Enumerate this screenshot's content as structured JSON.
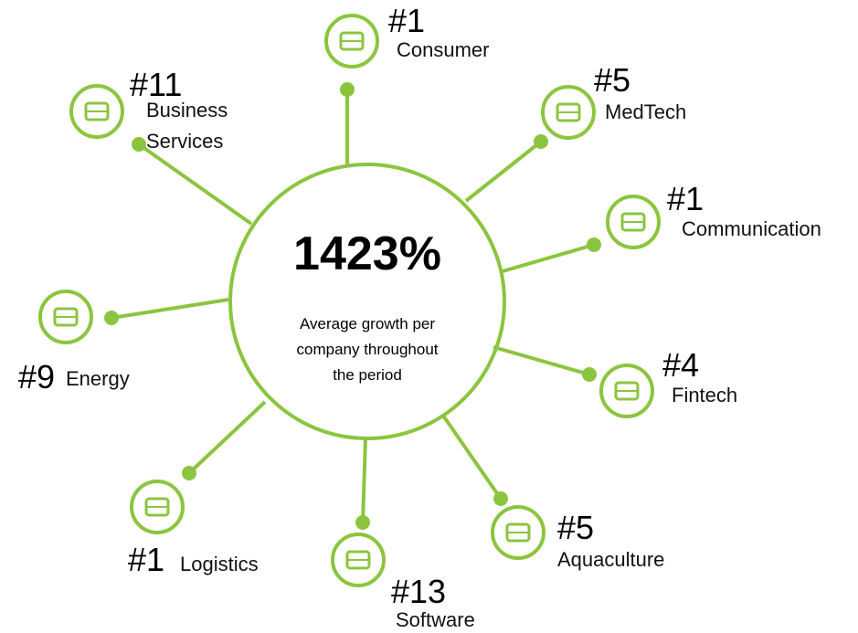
{
  "center": {
    "value": "1423%",
    "caption": [
      "Average growth per",
      "company throughout",
      "the period"
    ]
  },
  "nodes": [
    {
      "rank": "#1",
      "label": [
        "Consumer"
      ]
    },
    {
      "rank": "#5",
      "label": [
        "MedTech"
      ]
    },
    {
      "rank": "#1",
      "label": [
        "Communication"
      ]
    },
    {
      "rank": "#4",
      "label": [
        "Fintech"
      ]
    },
    {
      "rank": "#5",
      "label": [
        "Aquaculture"
      ]
    },
    {
      "rank": "#13",
      "label": [
        "Software"
      ]
    },
    {
      "rank": "#1",
      "label": [
        "Logistics"
      ]
    },
    {
      "rank": "#9",
      "label": [
        "Energy"
      ]
    },
    {
      "rank": "#11",
      "label": [
        "Business",
        "Services"
      ]
    }
  ]
}
